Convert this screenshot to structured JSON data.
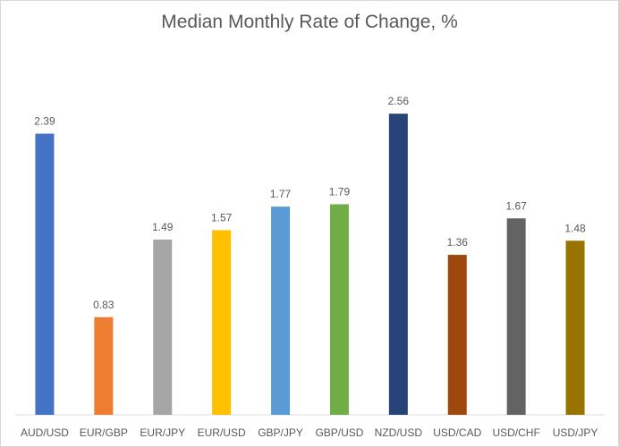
{
  "chart_data": {
    "type": "bar",
    "title": "Median Monthly Rate of Change, %",
    "xlabel": "",
    "ylabel": "",
    "categories": [
      "AUD/USD",
      "EUR/GBP",
      "EUR/JPY",
      "EUR/USD",
      "GBP/JPY",
      "GBP/USD",
      "NZD/USD",
      "USD/CAD",
      "USD/CHF",
      "USD/JPY"
    ],
    "values": [
      2.39,
      0.83,
      1.49,
      1.57,
      1.77,
      1.79,
      2.56,
      1.36,
      1.67,
      1.48
    ],
    "data_labels": [
      "2.39",
      "0.83",
      "1.49",
      "1.57",
      "1.77",
      "1.79",
      "2.56",
      "1.36",
      "1.67",
      "1.48"
    ],
    "colors": [
      "#4472C4",
      "#ED7D31",
      "#A5A5A5",
      "#FFC000",
      "#5B9BD5",
      "#70AD47",
      "#264478",
      "#9E480E",
      "#636363",
      "#997300"
    ],
    "ylim": [
      0,
      2.85
    ],
    "grid": false,
    "legend": "none"
  }
}
